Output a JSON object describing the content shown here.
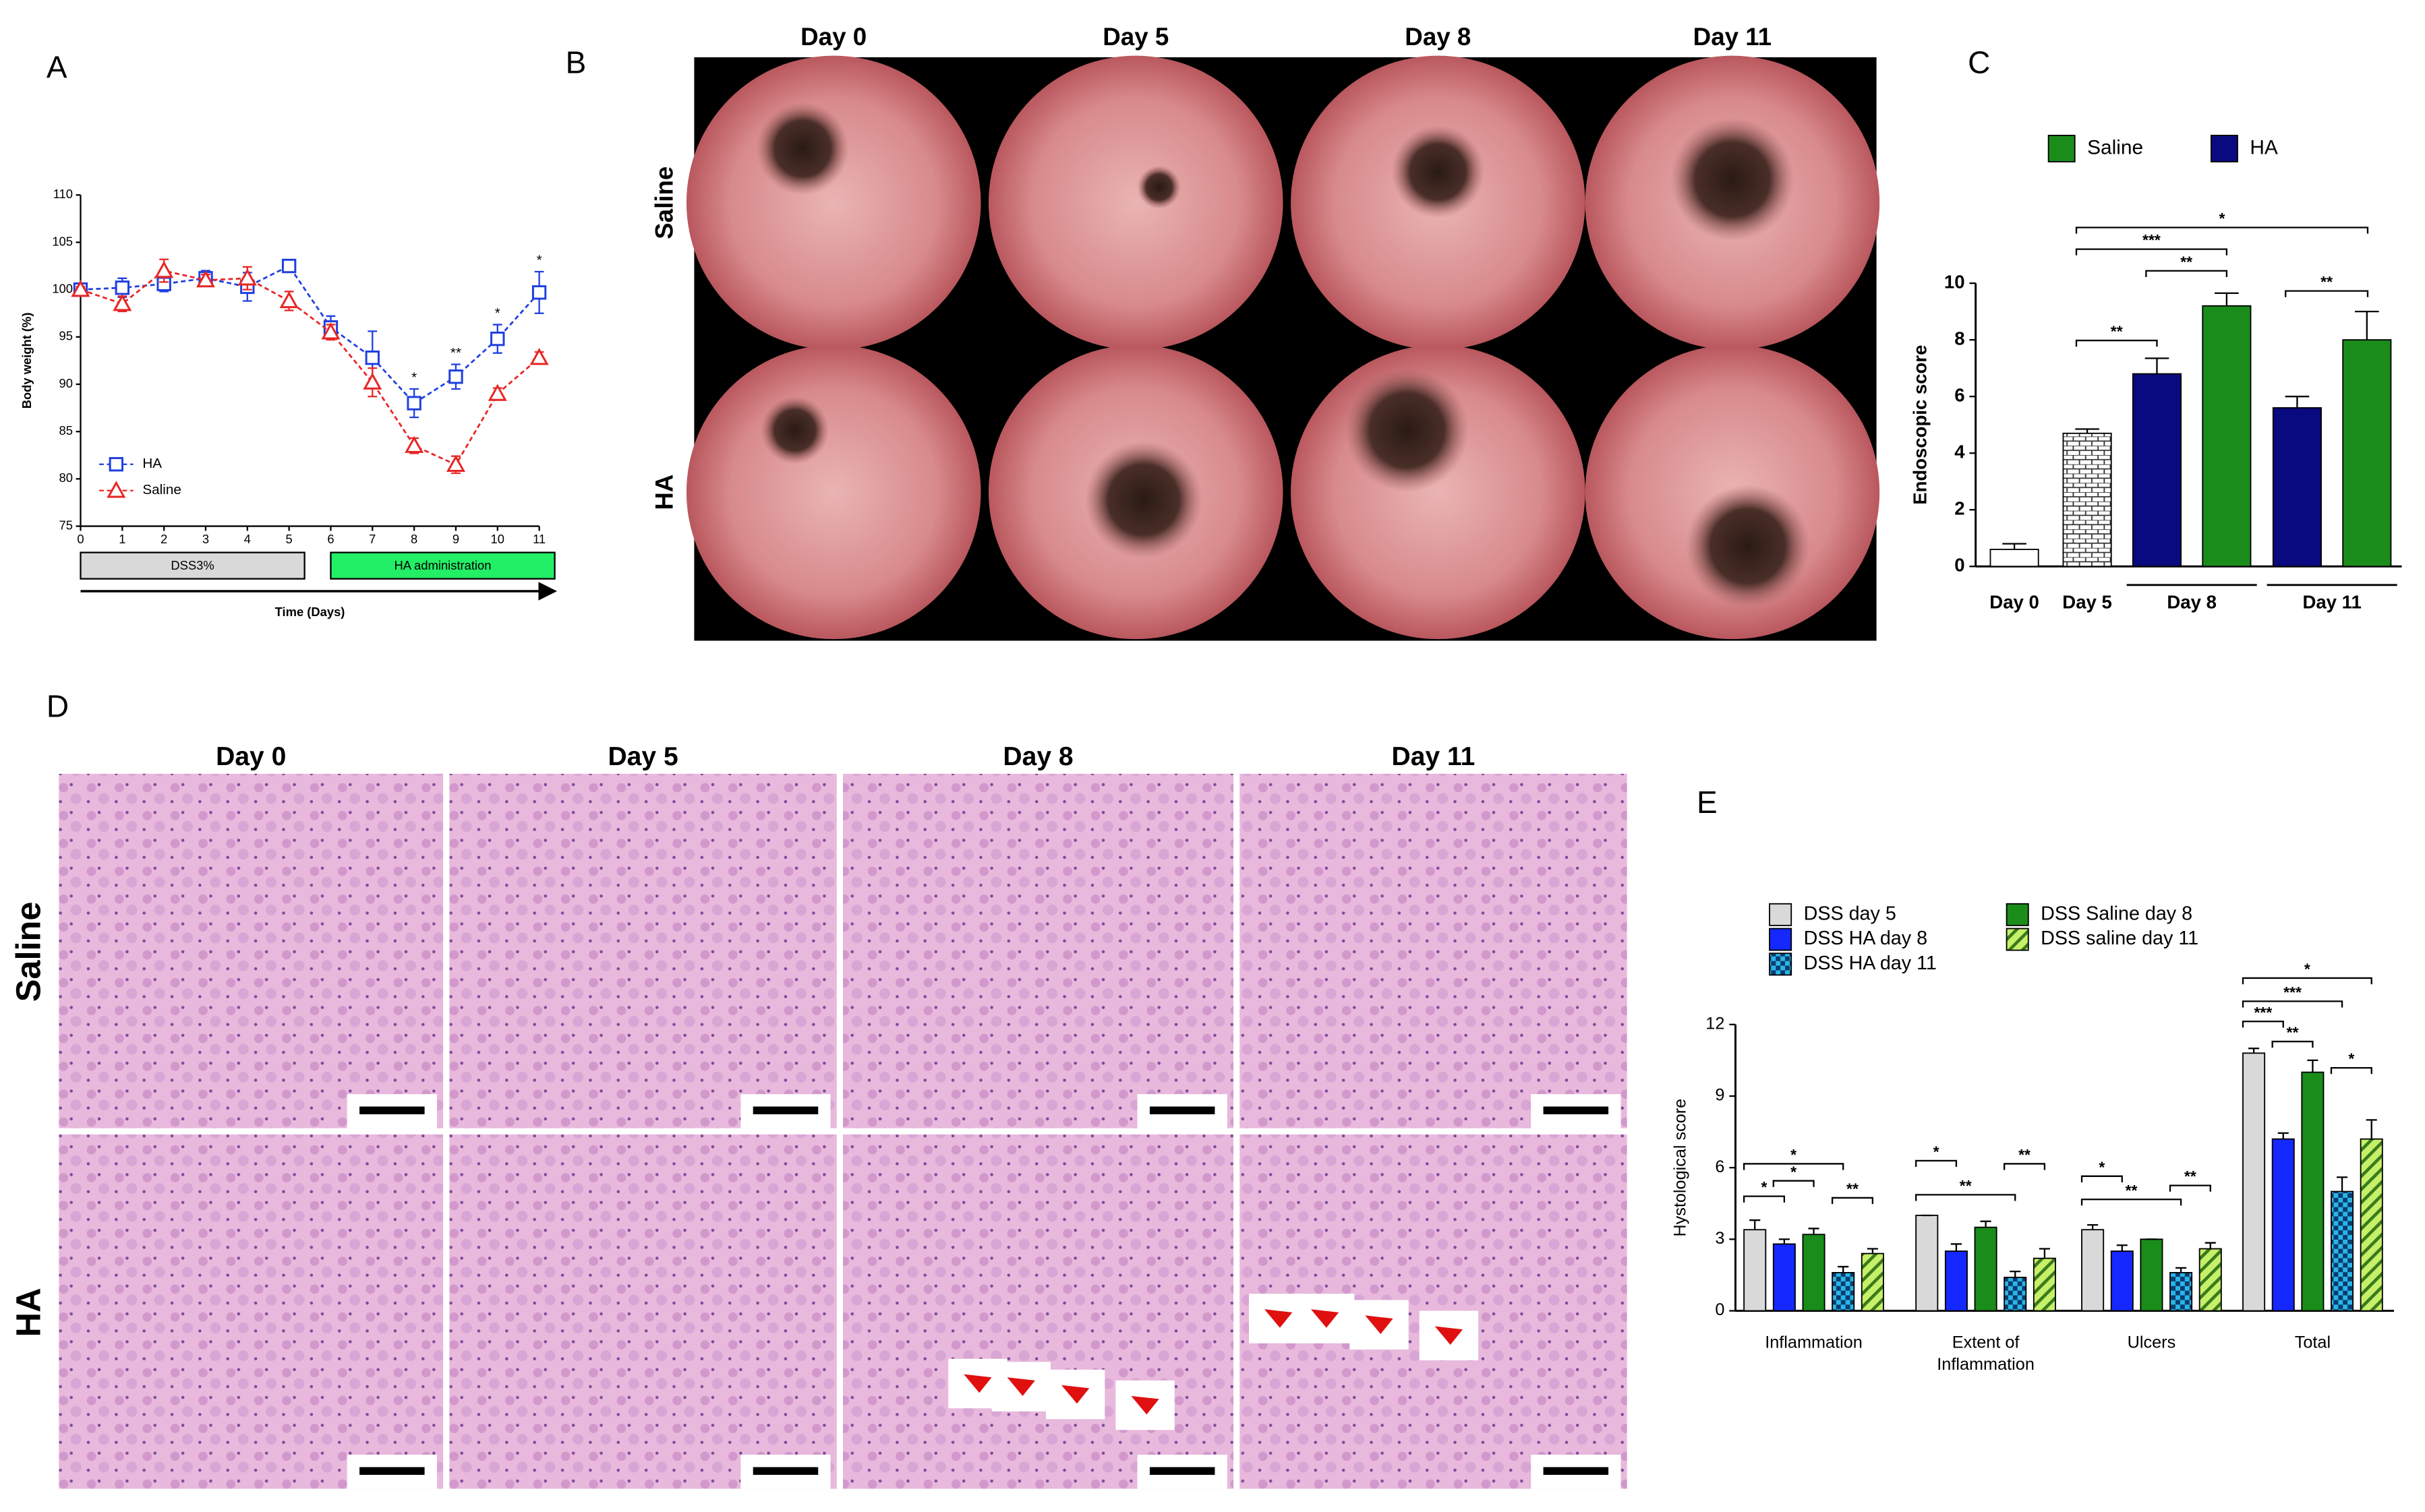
{
  "panel_labels": [
    "A",
    "B",
    "C",
    "D",
    "E"
  ],
  "endoscopy": {
    "columns": [
      "Day 0",
      "Day 5",
      "Day 8",
      "Day 11"
    ],
    "rows": [
      "Saline",
      "HA"
    ]
  },
  "histology": {
    "columns": [
      "Day 0",
      "Day 5",
      "Day 8",
      "Day 11"
    ],
    "rows": [
      "Saline",
      "HA"
    ]
  },
  "chart_data": [
    {
      "type": "line",
      "y_label": "Body weight (%)",
      "x_label": "Time (Days)",
      "x": [
        0,
        1,
        2,
        3,
        4,
        5,
        6,
        7,
        8,
        9,
        10,
        11
      ],
      "xlim": [
        0,
        11
      ],
      "ylim": [
        75,
        110
      ],
      "xticks": [
        0,
        1,
        2,
        3,
        4,
        5,
        6,
        7,
        8,
        9,
        10,
        11
      ],
      "yticks": [
        75,
        80,
        85,
        90,
        95,
        100,
        105,
        110
      ],
      "series": [
        {
          "name": "HA",
          "color": "#1f3fe0",
          "marker": "square",
          "values": [
            100,
            100.2,
            100.6,
            101.2,
            100.3,
            102.5,
            96,
            92.8,
            88,
            90.8,
            94.8,
            99.7
          ],
          "errors": [
            0.3,
            1,
            0.8,
            0.8,
            1.5,
            0.6,
            1.2,
            2.8,
            1.5,
            1.3,
            1.5,
            2.2
          ]
        },
        {
          "name": "Saline",
          "color": "#e82525",
          "marker": "triangle",
          "values": [
            100,
            98.5,
            102,
            101,
            101.2,
            98.8,
            95.5,
            90.2,
            83.5,
            81.5,
            89,
            92.8
          ],
          "errors": [
            0.3,
            0.8,
            1.2,
            0.6,
            1.2,
            1,
            0.8,
            1.5,
            0.8,
            0.9,
            0.6,
            0.6
          ]
        }
      ],
      "significance": [
        null,
        null,
        null,
        null,
        null,
        null,
        null,
        null,
        "*",
        "**",
        "*",
        "*"
      ],
      "phases": [
        {
          "label": "DSS3%",
          "start": 0,
          "end": 5,
          "color": "#d9d9d9"
        },
        {
          "label": "HA administration",
          "start": 6,
          "end": 11,
          "color": "#22ee66"
        }
      ],
      "legend": "lower left"
    },
    {
      "type": "bar",
      "y_label": "Endoscopic score",
      "categories": [
        "Day 0",
        "Day 5",
        "Day 8",
        "Day 11"
      ],
      "ylim": [
        0,
        10
      ],
      "yticks": [
        0,
        2,
        4,
        6,
        8,
        10
      ],
      "controls": {
        "values": [
          0.6,
          4.7,
          null,
          null
        ],
        "errors": [
          0.2,
          0.15,
          null,
          null
        ],
        "fills": [
          "#ffffff",
          "brick",
          null,
          null
        ]
      },
      "series": [
        {
          "name": "Saline",
          "color": "#1a8c1a",
          "values": [
            null,
            null,
            9.2,
            8.0
          ],
          "errors": [
            null,
            null,
            0.45,
            1.0
          ]
        },
        {
          "name": "HA",
          "color": "#0a0a80",
          "values": [
            null,
            null,
            6.8,
            5.6
          ],
          "errors": [
            null,
            null,
            0.55,
            0.4
          ]
        }
      ],
      "significance": [
        "*",
        "***",
        "**",
        "**",
        "**"
      ],
      "legend": "top"
    },
    {
      "type": "bar",
      "y_label": "Hystological score",
      "categories": [
        "Inflammation",
        "Extent of Inflammation",
        "Ulcers",
        "Total"
      ],
      "ylim": [
        0,
        12
      ],
      "yticks": [
        0,
        3,
        6,
        9,
        12
      ],
      "series": [
        {
          "name": "DSS day 5",
          "color": "#d9d9d9",
          "values": [
            3.4,
            4.0,
            3.4,
            10.8
          ],
          "errors": [
            0.4,
            0,
            0.2,
            0.2
          ]
        },
        {
          "name": "DSS HA day 8",
          "color": "#1428ff",
          "values": [
            2.8,
            2.5,
            2.5,
            7.2
          ],
          "errors": [
            0.2,
            0.3,
            0.25,
            0.25
          ]
        },
        {
          "name": "DSS HA day 11",
          "color": "#29b6e8",
          "pattern": "checker",
          "values": [
            1.6,
            1.4,
            1.6,
            5.0
          ],
          "errors": [
            0.25,
            0.25,
            0.2,
            0.6
          ]
        },
        {
          "name": "DSS Saline day 8",
          "color": "#1a8c1a",
          "values": [
            3.2,
            3.5,
            3.0,
            10.0
          ],
          "errors": [
            0.25,
            0.25,
            0,
            0.5
          ]
        },
        {
          "name": "DSS saline day 11",
          "color": "#c6f06a",
          "pattern": "hatch",
          "values": [
            2.4,
            2.2,
            2.6,
            7.2
          ],
          "errors": [
            0.2,
            0.4,
            0.25,
            0.8
          ]
        }
      ],
      "significance": [
        [
          "*",
          "*",
          "*",
          "**"
        ],
        [
          "*",
          "**",
          "**"
        ],
        [
          "*",
          "**",
          "**"
        ],
        [
          "*",
          "***",
          "***",
          "**",
          "*"
        ]
      ],
      "legend": "top"
    }
  ]
}
